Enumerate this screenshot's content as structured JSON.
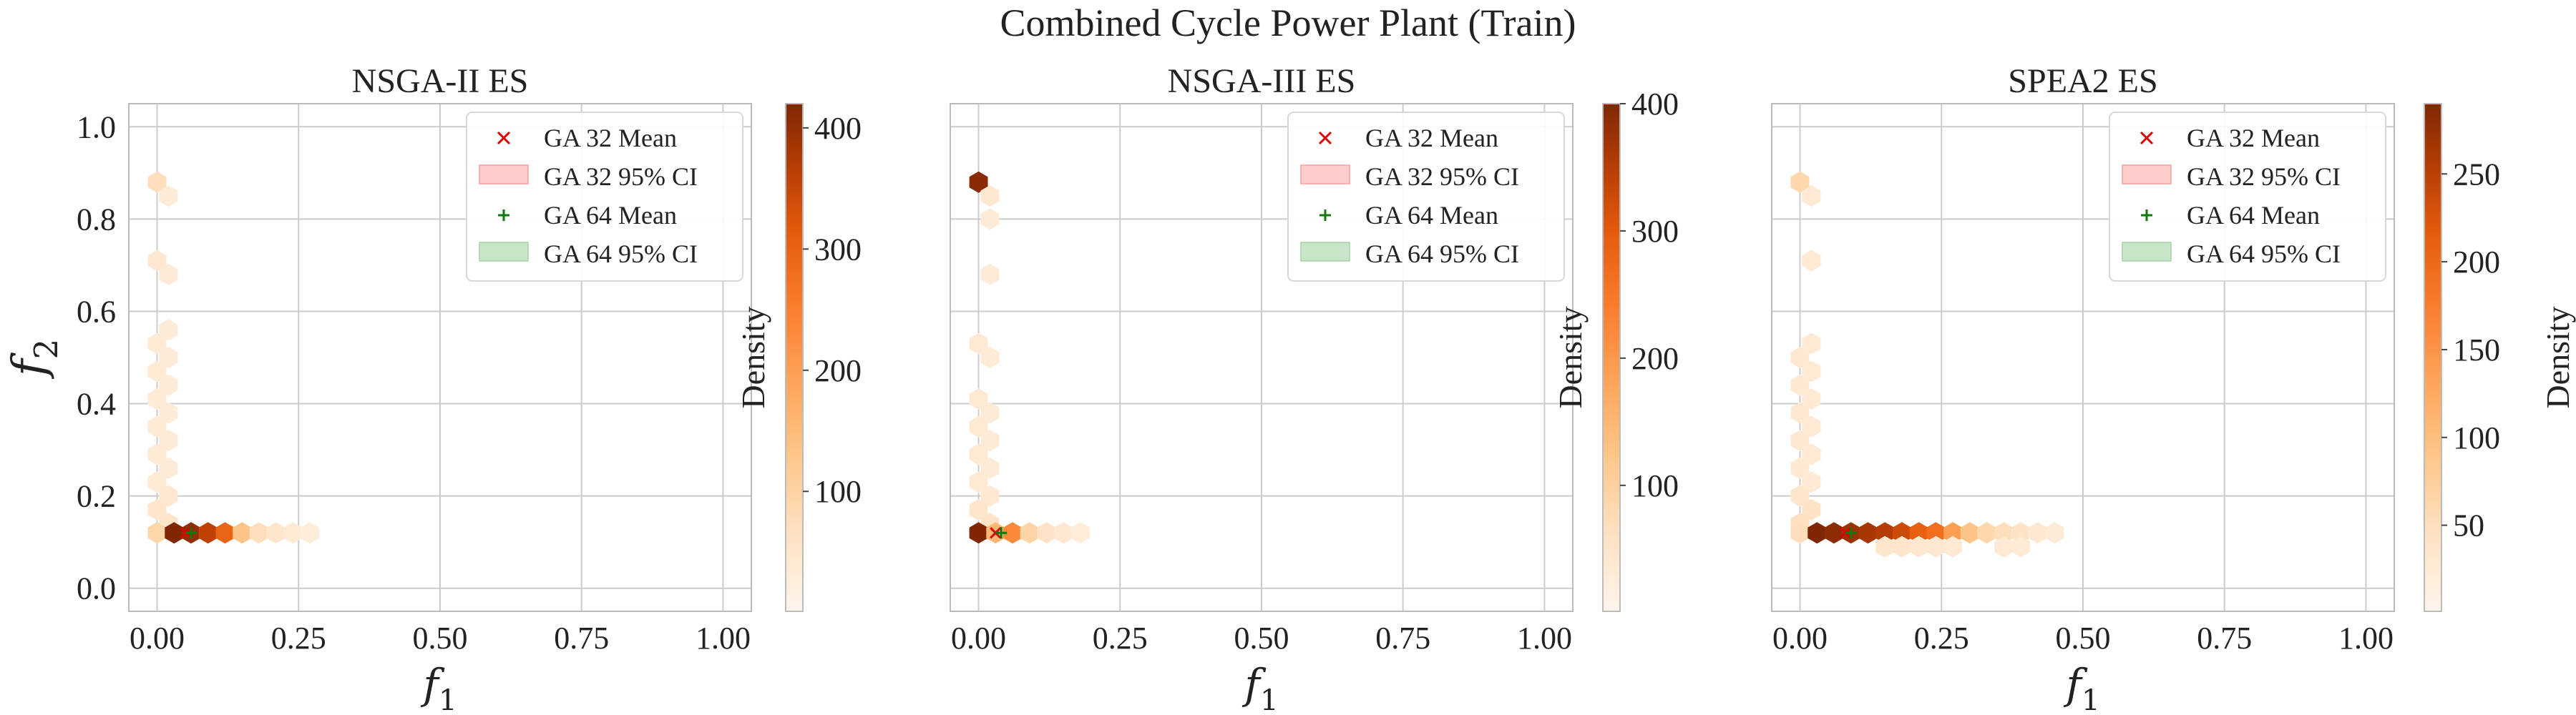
{
  "figure": {
    "title": "Combined Cycle Power Plant (Train)"
  },
  "colors": {
    "ga32_marker": "#dd0000",
    "ga32_ci_fill": "#ffcccc",
    "ga64_marker": "#117711",
    "ga64_ci_fill": "#c8e6c8",
    "grid": "#cccccc",
    "axes_edge": "#bbbbbb",
    "colormap": "Oranges"
  },
  "chart_data": [
    {
      "type": "hexbin",
      "title": "NSGA-II ES",
      "xlabel": "f1",
      "ylabel": "f2",
      "xlim": [
        -0.05,
        1.05
      ],
      "ylim": [
        -0.05,
        1.05
      ],
      "xticks": [
        "0.00",
        "0.25",
        "0.50",
        "0.75",
        "1.00"
      ],
      "xtick_values": [
        0,
        0.25,
        0.5,
        0.75,
        1.0
      ],
      "yticks": [
        "0.0",
        "0.2",
        "0.4",
        "0.6",
        "0.8",
        "1.0"
      ],
      "ytick_values": [
        0,
        0.2,
        0.4,
        0.6,
        0.8,
        1.0
      ],
      "grid": true,
      "legend": {
        "placement": "upper-right",
        "entries": [
          "GA 32 Mean",
          "GA 32 95% CI",
          "GA 64 Mean",
          "GA 64 95% CI"
        ]
      },
      "colorbar": {
        "label": "Density",
        "min": 1,
        "max": 420,
        "ticks": [
          "100",
          "200",
          "300",
          "400"
        ],
        "tick_values": [
          100,
          200,
          300,
          400
        ]
      },
      "bins": [
        {
          "x": 0.0,
          "y": 0.88,
          "density": 40
        },
        {
          "x": 0.02,
          "y": 0.85,
          "density": 10
        },
        {
          "x": 0.0,
          "y": 0.71,
          "density": 15
        },
        {
          "x": 0.02,
          "y": 0.68,
          "density": 10
        },
        {
          "x": 0.02,
          "y": 0.56,
          "density": 10
        },
        {
          "x": 0.0,
          "y": 0.53,
          "density": 12
        },
        {
          "x": 0.02,
          "y": 0.5,
          "density": 10
        },
        {
          "x": 0.0,
          "y": 0.47,
          "density": 12
        },
        {
          "x": 0.02,
          "y": 0.44,
          "density": 10
        },
        {
          "x": 0.0,
          "y": 0.41,
          "density": 12
        },
        {
          "x": 0.02,
          "y": 0.38,
          "density": 10
        },
        {
          "x": 0.0,
          "y": 0.35,
          "density": 12
        },
        {
          "x": 0.02,
          "y": 0.32,
          "density": 10
        },
        {
          "x": 0.0,
          "y": 0.29,
          "density": 12
        },
        {
          "x": 0.02,
          "y": 0.26,
          "density": 10
        },
        {
          "x": 0.0,
          "y": 0.23,
          "density": 12
        },
        {
          "x": 0.02,
          "y": 0.2,
          "density": 15
        },
        {
          "x": 0.0,
          "y": 0.17,
          "density": 20
        },
        {
          "x": 0.02,
          "y": 0.14,
          "density": 25
        },
        {
          "x": 0.0,
          "y": 0.12,
          "density": 60
        },
        {
          "x": 0.03,
          "y": 0.12,
          "density": 420
        },
        {
          "x": 0.06,
          "y": 0.12,
          "density": 400
        },
        {
          "x": 0.09,
          "y": 0.12,
          "density": 350
        },
        {
          "x": 0.12,
          "y": 0.12,
          "density": 280
        },
        {
          "x": 0.15,
          "y": 0.12,
          "density": 100
        },
        {
          "x": 0.18,
          "y": 0.12,
          "density": 40
        },
        {
          "x": 0.21,
          "y": 0.12,
          "density": 20
        },
        {
          "x": 0.24,
          "y": 0.12,
          "density": 12
        },
        {
          "x": 0.27,
          "y": 0.12,
          "density": 8
        }
      ],
      "ga32_mean": {
        "x": 0.05,
        "y": 0.12
      },
      "ga64_mean": {
        "x": 0.06,
        "y": 0.12
      }
    },
    {
      "type": "hexbin",
      "title": "NSGA-III ES",
      "xlabel": "f1",
      "ylabel": "",
      "xlim": [
        -0.05,
        1.05
      ],
      "ylim": [
        -0.05,
        1.05
      ],
      "xticks": [
        "0.00",
        "0.25",
        "0.50",
        "0.75",
        "1.00"
      ],
      "xtick_values": [
        0,
        0.25,
        0.5,
        0.75,
        1.0
      ],
      "yticks": [],
      "ytick_values": [
        0,
        0.2,
        0.4,
        0.6,
        0.8,
        1.0
      ],
      "grid": true,
      "legend": {
        "placement": "upper-right",
        "entries": [
          "GA 32 Mean",
          "GA 32 95% CI",
          "GA 64 Mean",
          "GA 64 95% CI"
        ]
      },
      "colorbar": {
        "label": "Density",
        "min": 1,
        "max": 400,
        "ticks": [
          "100",
          "200",
          "300",
          "400"
        ],
        "tick_values": [
          100,
          200,
          300,
          400
        ]
      },
      "bins": [
        {
          "x": 0.0,
          "y": 0.88,
          "density": 390
        },
        {
          "x": 0.02,
          "y": 0.85,
          "density": 15
        },
        {
          "x": 0.02,
          "y": 0.8,
          "density": 10
        },
        {
          "x": 0.02,
          "y": 0.68,
          "density": 10
        },
        {
          "x": 0.0,
          "y": 0.53,
          "density": 12
        },
        {
          "x": 0.02,
          "y": 0.5,
          "density": 10
        },
        {
          "x": 0.0,
          "y": 0.41,
          "density": 12
        },
        {
          "x": 0.02,
          "y": 0.38,
          "density": 10
        },
        {
          "x": 0.0,
          "y": 0.35,
          "density": 12
        },
        {
          "x": 0.02,
          "y": 0.32,
          "density": 10
        },
        {
          "x": 0.0,
          "y": 0.29,
          "density": 12
        },
        {
          "x": 0.02,
          "y": 0.26,
          "density": 10
        },
        {
          "x": 0.0,
          "y": 0.23,
          "density": 12
        },
        {
          "x": 0.02,
          "y": 0.2,
          "density": 15
        },
        {
          "x": 0.0,
          "y": 0.17,
          "density": 20
        },
        {
          "x": 0.02,
          "y": 0.14,
          "density": 25
        },
        {
          "x": 0.0,
          "y": 0.12,
          "density": 400
        },
        {
          "x": 0.03,
          "y": 0.12,
          "density": 120
        },
        {
          "x": 0.06,
          "y": 0.12,
          "density": 200
        },
        {
          "x": 0.09,
          "y": 0.12,
          "density": 60
        },
        {
          "x": 0.12,
          "y": 0.12,
          "density": 25
        },
        {
          "x": 0.15,
          "y": 0.12,
          "density": 15
        },
        {
          "x": 0.18,
          "y": 0.12,
          "density": 8
        }
      ],
      "ga32_mean": {
        "x": 0.03,
        "y": 0.12
      },
      "ga64_mean": {
        "x": 0.04,
        "y": 0.12
      }
    },
    {
      "type": "hexbin",
      "title": "SPEA2 ES",
      "xlabel": "f1",
      "ylabel": "",
      "xlim": [
        -0.05,
        1.05
      ],
      "ylim": [
        -0.05,
        1.05
      ],
      "xticks": [
        "0.00",
        "0.25",
        "0.50",
        "0.75",
        "1.00"
      ],
      "xtick_values": [
        0,
        0.25,
        0.5,
        0.75,
        1.0
      ],
      "yticks": [],
      "ytick_values": [
        0,
        0.2,
        0.4,
        0.6,
        0.8,
        1.0
      ],
      "grid": true,
      "legend": {
        "placement": "upper-right",
        "entries": [
          "GA 32 Mean",
          "GA 32 95% CI",
          "GA 64 Mean",
          "GA 64 95% CI"
        ]
      },
      "colorbar": {
        "label": "Density",
        "min": 1,
        "max": 290,
        "ticks": [
          "50",
          "100",
          "150",
          "200",
          "250"
        ],
        "tick_values": [
          50,
          100,
          150,
          200,
          250
        ]
      },
      "bins": [
        {
          "x": 0.0,
          "y": 0.88,
          "density": 40
        },
        {
          "x": 0.02,
          "y": 0.85,
          "density": 10
        },
        {
          "x": 0.02,
          "y": 0.71,
          "density": 10
        },
        {
          "x": 0.02,
          "y": 0.53,
          "density": 10
        },
        {
          "x": 0.0,
          "y": 0.5,
          "density": 12
        },
        {
          "x": 0.02,
          "y": 0.47,
          "density": 10
        },
        {
          "x": 0.0,
          "y": 0.44,
          "density": 12
        },
        {
          "x": 0.02,
          "y": 0.41,
          "density": 10
        },
        {
          "x": 0.0,
          "y": 0.38,
          "density": 12
        },
        {
          "x": 0.02,
          "y": 0.35,
          "density": 10
        },
        {
          "x": 0.0,
          "y": 0.32,
          "density": 12
        },
        {
          "x": 0.02,
          "y": 0.29,
          "density": 10
        },
        {
          "x": 0.0,
          "y": 0.26,
          "density": 12
        },
        {
          "x": 0.02,
          "y": 0.23,
          "density": 10
        },
        {
          "x": 0.0,
          "y": 0.2,
          "density": 15
        },
        {
          "x": 0.02,
          "y": 0.17,
          "density": 20
        },
        {
          "x": 0.0,
          "y": 0.14,
          "density": 25
        },
        {
          "x": 0.0,
          "y": 0.12,
          "density": 30
        },
        {
          "x": 0.03,
          "y": 0.12,
          "density": 290
        },
        {
          "x": 0.06,
          "y": 0.12,
          "density": 280
        },
        {
          "x": 0.09,
          "y": 0.12,
          "density": 270
        },
        {
          "x": 0.12,
          "y": 0.12,
          "density": 260
        },
        {
          "x": 0.15,
          "y": 0.12,
          "density": 250
        },
        {
          "x": 0.18,
          "y": 0.12,
          "density": 230
        },
        {
          "x": 0.21,
          "y": 0.12,
          "density": 200
        },
        {
          "x": 0.24,
          "y": 0.12,
          "density": 180
        },
        {
          "x": 0.27,
          "y": 0.12,
          "density": 120
        },
        {
          "x": 0.3,
          "y": 0.12,
          "density": 70
        },
        {
          "x": 0.33,
          "y": 0.12,
          "density": 40
        },
        {
          "x": 0.36,
          "y": 0.12,
          "density": 30
        },
        {
          "x": 0.39,
          "y": 0.12,
          "density": 20
        },
        {
          "x": 0.42,
          "y": 0.12,
          "density": 12
        },
        {
          "x": 0.45,
          "y": 0.12,
          "density": 8
        },
        {
          "x": 0.15,
          "y": 0.09,
          "density": 15
        },
        {
          "x": 0.18,
          "y": 0.09,
          "density": 15
        },
        {
          "x": 0.21,
          "y": 0.09,
          "density": 12
        },
        {
          "x": 0.24,
          "y": 0.09,
          "density": 12
        },
        {
          "x": 0.27,
          "y": 0.09,
          "density": 10
        },
        {
          "x": 0.36,
          "y": 0.09,
          "density": 10
        },
        {
          "x": 0.39,
          "y": 0.09,
          "density": 8
        }
      ],
      "ga32_mean": {
        "x": 0.08,
        "y": 0.12
      },
      "ga64_mean": {
        "x": 0.09,
        "y": 0.12
      }
    }
  ]
}
